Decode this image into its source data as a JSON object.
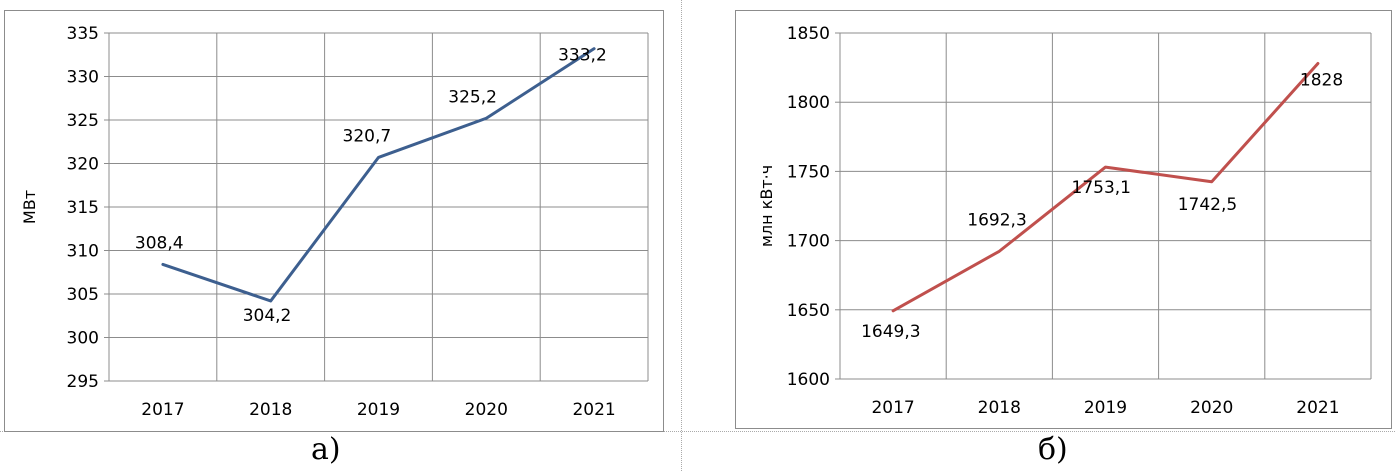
{
  "chart_data": [
    {
      "type": "line",
      "ylabel": "МВт",
      "xlabel": "",
      "categories": [
        "2017",
        "2018",
        "2019",
        "2020",
        "2021"
      ],
      "values": [
        308.4,
        304.2,
        320.7,
        325.2,
        333.2
      ],
      "data_labels": [
        "308,4",
        "304,2",
        "320,7",
        "325,2",
        "333,2"
      ],
      "y_ticks": [
        "295",
        "300",
        "305",
        "310",
        "315",
        "320",
        "325",
        "330",
        "335"
      ],
      "ylim": [
        295,
        335
      ],
      "y_step": 5,
      "grid": true,
      "color": "#3d5f8f"
    },
    {
      "type": "line",
      "ylabel": "млн кВт·ч",
      "xlabel": "",
      "categories": [
        "2017",
        "2018",
        "2019",
        "2020",
        "2021"
      ],
      "values": [
        1649.3,
        1692.3,
        1753.1,
        1742.5,
        1828
      ],
      "data_labels": [
        "1649,3",
        "1692,3",
        "1753,1",
        "1742,5",
        "1828"
      ],
      "y_ticks": [
        "1600",
        "1650",
        "1700",
        "1750",
        "1800",
        "1850"
      ],
      "ylim": [
        1600,
        1850
      ],
      "y_step": 50,
      "grid": true,
      "color": "#c0504d"
    }
  ],
  "captions": [
    "а)",
    "б)"
  ]
}
